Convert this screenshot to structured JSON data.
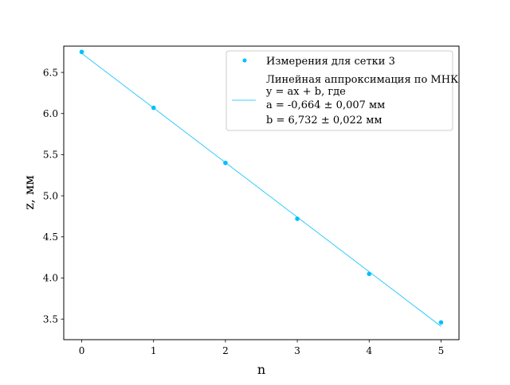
{
  "chart_data": {
    "type": "scatter",
    "title": "",
    "xlabel": "n",
    "ylabel": "z, мм",
    "xlim": [
      -0.25,
      5.25
    ],
    "ylim": [
      3.25,
      6.82
    ],
    "xticks": [
      0,
      1,
      2,
      3,
      4,
      5
    ],
    "xtick_labels": [
      "0",
      "1",
      "2",
      "3",
      "4",
      "5"
    ],
    "yticks": [
      3.5,
      4.0,
      4.5,
      5.0,
      5.5,
      6.0,
      6.5
    ],
    "ytick_labels": [
      "3.5",
      "4.0",
      "4.5",
      "5.0",
      "5.5",
      "6.0",
      "6.5"
    ],
    "grid": false,
    "legend_position": "top-right",
    "series": [
      {
        "name": "Измерения для сетки 3",
        "kind": "points",
        "color": "#00bfff",
        "x": [
          0,
          1,
          2,
          3,
          4,
          5
        ],
        "y": [
          6.75,
          6.07,
          5.4,
          4.72,
          4.05,
          3.46
        ]
      },
      {
        "name": "Линейная аппроксимация по МНК",
        "kind": "line",
        "color": "#00bfff",
        "slope": -0.664,
        "intercept": 6.732,
        "x_range": [
          0,
          5
        ]
      }
    ],
    "legend_lines": [
      "Измерения для сетки 3",
      "Линейная аппроксимация по МНК",
      "y = ax + b, где",
      "a = -0,664 ± 0,007 мм",
      "b = 6,732 ± 0,022 мм"
    ]
  }
}
